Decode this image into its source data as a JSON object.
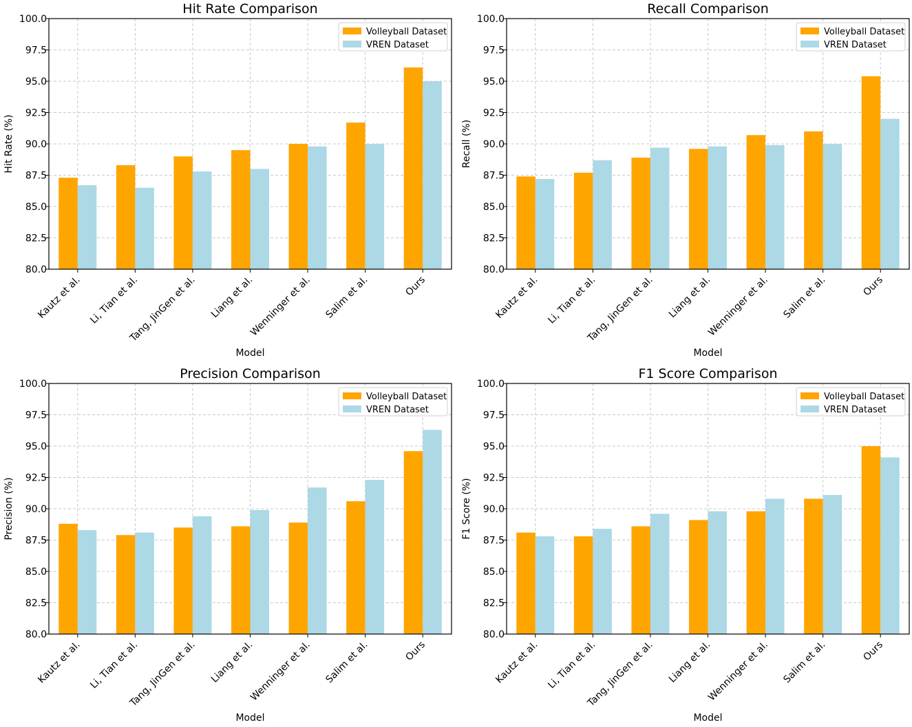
{
  "colors": {
    "volleyball": "#FFA500",
    "vren": "#ADD8E6"
  },
  "chart_data": [
    {
      "type": "bar",
      "title": "Hit Rate Comparison",
      "xlabel": "Model",
      "ylabel": "Hit Rate (%)",
      "ylim": [
        80,
        100
      ],
      "yticks": [
        "80.0",
        "82.5",
        "85.0",
        "87.5",
        "90.0",
        "92.5",
        "95.0",
        "97.5",
        "100.0"
      ],
      "grid": true,
      "legend_position": "top-right",
      "categories": [
        "Kautz et al.",
        "Li, Tian et al.",
        "Tang, JinGen et al.",
        "Liang et al.",
        "Wenninger et al.",
        "Salim et al.",
        "Ours"
      ],
      "series": [
        {
          "name": "Volleyball Dataset",
          "values": [
            87.3,
            88.3,
            89.0,
            89.5,
            90.0,
            91.7,
            96.1
          ]
        },
        {
          "name": "VREN Dataset",
          "values": [
            86.7,
            86.5,
            87.8,
            88.0,
            89.8,
            90.0,
            95.0
          ]
        }
      ]
    },
    {
      "type": "bar",
      "title": "Recall Comparison",
      "xlabel": "Model",
      "ylabel": "Recall (%)",
      "ylim": [
        80,
        100
      ],
      "yticks": [
        "80.0",
        "82.5",
        "85.0",
        "87.5",
        "90.0",
        "92.5",
        "95.0",
        "97.5",
        "100.0"
      ],
      "grid": true,
      "legend_position": "top-right",
      "categories": [
        "Kautz et al.",
        "Li, Tian et al.",
        "Tang, JinGen et al.",
        "Liang et al.",
        "Wenninger et al.",
        "Salim et al.",
        "Ours"
      ],
      "series": [
        {
          "name": "Volleyball Dataset",
          "values": [
            87.4,
            87.7,
            88.9,
            89.6,
            90.7,
            91.0,
            95.4
          ]
        },
        {
          "name": "VREN Dataset",
          "values": [
            87.2,
            88.7,
            89.7,
            89.8,
            89.9,
            90.0,
            92.0
          ]
        }
      ]
    },
    {
      "type": "bar",
      "title": "Precision Comparison",
      "xlabel": "Model",
      "ylabel": "Precision (%)",
      "ylim": [
        80,
        100
      ],
      "yticks": [
        "80.0",
        "82.5",
        "85.0",
        "87.5",
        "90.0",
        "92.5",
        "95.0",
        "97.5",
        "100.0"
      ],
      "grid": true,
      "legend_position": "top-right",
      "categories": [
        "Kautz et al.",
        "Li, Tian et al.",
        "Tang, JinGen et al.",
        "Liang et al.",
        "Wenninger et al.",
        "Salim et al.",
        "Ours"
      ],
      "series": [
        {
          "name": "Volleyball Dataset",
          "values": [
            88.8,
            87.9,
            88.5,
            88.6,
            88.9,
            90.6,
            94.6
          ]
        },
        {
          "name": "VREN Dataset",
          "values": [
            88.3,
            88.1,
            89.4,
            89.9,
            91.7,
            92.3,
            96.3
          ]
        }
      ]
    },
    {
      "type": "bar",
      "title": "F1 Score Comparison",
      "xlabel": "Model",
      "ylabel": "F1 Score (%)",
      "ylim": [
        80,
        100
      ],
      "yticks": [
        "80.0",
        "82.5",
        "85.0",
        "87.5",
        "90.0",
        "92.5",
        "95.0",
        "97.5",
        "100.0"
      ],
      "grid": true,
      "legend_position": "top-right",
      "categories": [
        "Kautz et al.",
        "Li, Tian et al.",
        "Tang, JinGen et al.",
        "Liang et al.",
        "Wenninger et al.",
        "Salim et al.",
        "Ours"
      ],
      "series": [
        {
          "name": "Volleyball Dataset",
          "values": [
            88.1,
            87.8,
            88.6,
            89.1,
            89.8,
            90.8,
            95.0
          ]
        },
        {
          "name": "VREN Dataset",
          "values": [
            87.8,
            88.4,
            89.6,
            89.8,
            90.8,
            91.1,
            94.1
          ]
        }
      ]
    }
  ]
}
